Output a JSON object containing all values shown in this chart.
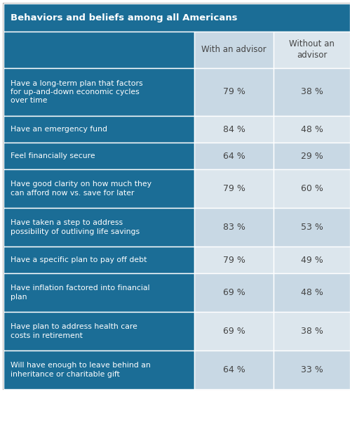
{
  "title": "Behaviors and beliefs among all Americans",
  "col1_header": "With an advisor",
  "col2_header": "Without an\nadvisor",
  "rows": [
    {
      "label": "Have a long-term plan that factors\nfor up-and-down economic cycles\nover time",
      "with": "79 %",
      "without": "38 %"
    },
    {
      "label": "Have an emergency fund",
      "with": "84 %",
      "without": "48 %"
    },
    {
      "label": "Feel financially secure",
      "with": "64 %",
      "without": "29 %"
    },
    {
      "label": "Have good clarity on how much they\ncan afford now vs. save for later",
      "with": "79 %",
      "without": "60 %"
    },
    {
      "label": "Have taken a step to address\npossibility of outliving life savings",
      "with": "83 %",
      "without": "53 %"
    },
    {
      "label": "Have a specific plan to pay off debt",
      "with": "79 %",
      "without": "49 %"
    },
    {
      "label": "Have inflation factored into financial\nplan",
      "with": "69 %",
      "without": "48 %"
    },
    {
      "label": "Have plan to address health care\ncosts in retirement",
      "with": "69 %",
      "without": "38 %"
    },
    {
      "label": "Will have enough to leave behind an\ninheritance or charitable gift",
      "with": "64 %",
      "without": "33 %"
    }
  ],
  "title_bg": "#1b6d96",
  "header_bg": "#1b6d96",
  "row_bg_dark": "#1b6d96",
  "cell_bg_dark": "#c8d8e4",
  "cell_bg_light": "#dce6ed",
  "title_color": "#ffffff",
  "header_text_color": "#444444",
  "row_text_white": "#ffffff",
  "row_text_dark": "#444444",
  "border_color": "#ffffff",
  "outer_border": "#aaaaaa"
}
